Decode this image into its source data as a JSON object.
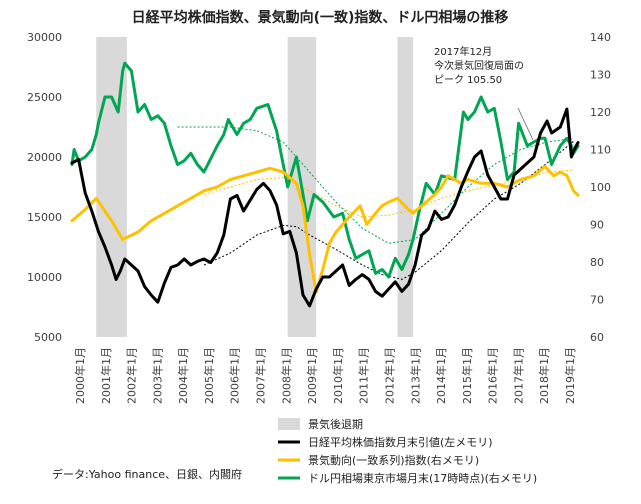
{
  "chart_data": {
    "type": "line",
    "title": "日経平均株価指数、景気動向(一致)指数、ドル円相場の推移",
    "source": "データ:Yahoo finance、日銀、内閣府",
    "annotation": [
      "2017年12月",
      "今次景気回復局面の",
      "ピーク 105.50"
    ],
    "x_labels": [
      "2000年1月",
      "2001年1月",
      "2002年1月",
      "2003年1月",
      "2004年1月",
      "2005年1月",
      "2006年1月",
      "2007年1月",
      "2008年1月",
      "2009年1月",
      "2010年1月",
      "2011年1月",
      "2012年1月",
      "2013年1月",
      "2014年1月",
      "2015年1月",
      "2016年1月",
      "2017年1月",
      "2018年1月",
      "2019年1月"
    ],
    "x_range": [
      2000.0,
      2019.17
    ],
    "y_left": {
      "ticks": [
        5000,
        10000,
        15000,
        20000,
        25000,
        30000
      ],
      "range": [
        5000,
        30000
      ]
    },
    "y_right": {
      "ticks": [
        60,
        70,
        80,
        90,
        100,
        110,
        120,
        130,
        140
      ],
      "range": [
        60,
        140
      ]
    },
    "recessions": [
      [
        2000.92,
        2002.08
      ],
      [
        2008.17,
        2009.25
      ],
      [
        2012.33,
        2012.92
      ]
    ],
    "legend": [
      {
        "key": "recession",
        "label": "景気後退期",
        "color": "#d9d9d9"
      },
      {
        "key": "nikkei",
        "label": "日経平均株価指数月末引値(左メモリ)",
        "color": "#000000"
      },
      {
        "key": "ci",
        "label": "景気動向(一致系列)指数(右メモリ)",
        "color": "#ffc000"
      },
      {
        "key": "usdjpy",
        "label": "ドル円相場東京市場月末(17時時点)(右メモリ)",
        "color": "#00a651"
      }
    ],
    "series": [
      {
        "name": "日経平均株価指数月末引値",
        "axis": "left",
        "color": "#000000",
        "points": [
          [
            2000.0,
            19500
          ],
          [
            2000.25,
            19800
          ],
          [
            2000.5,
            17000
          ],
          [
            2000.75,
            15500
          ],
          [
            2001.0,
            13800
          ],
          [
            2001.25,
            12500
          ],
          [
            2001.5,
            11000
          ],
          [
            2001.67,
            9800
          ],
          [
            2001.83,
            10500
          ],
          [
            2002.0,
            11500
          ],
          [
            2002.25,
            11000
          ],
          [
            2002.5,
            10500
          ],
          [
            2002.75,
            9200
          ],
          [
            2003.0,
            8500
          ],
          [
            2003.25,
            7900
          ],
          [
            2003.5,
            9500
          ],
          [
            2003.75,
            10800
          ],
          [
            2004.0,
            11000
          ],
          [
            2004.25,
            11500
          ],
          [
            2004.5,
            11000
          ],
          [
            2004.75,
            11300
          ],
          [
            2005.0,
            11500
          ],
          [
            2005.25,
            11200
          ],
          [
            2005.5,
            12000
          ],
          [
            2005.75,
            13500
          ],
          [
            2006.0,
            16500
          ],
          [
            2006.25,
            16800
          ],
          [
            2006.5,
            15500
          ],
          [
            2006.75,
            16400
          ],
          [
            2007.0,
            17300
          ],
          [
            2007.25,
            17800
          ],
          [
            2007.5,
            17200
          ],
          [
            2007.75,
            16000
          ],
          [
            2008.0,
            13600
          ],
          [
            2008.25,
            13800
          ],
          [
            2008.5,
            12000
          ],
          [
            2008.75,
            8500
          ],
          [
            2009.0,
            7600
          ],
          [
            2009.25,
            9000
          ],
          [
            2009.5,
            10000
          ],
          [
            2009.75,
            10000
          ],
          [
            2010.0,
            10500
          ],
          [
            2010.25,
            11000
          ],
          [
            2010.5,
            9300
          ],
          [
            2010.75,
            9800
          ],
          [
            2011.0,
            10200
          ],
          [
            2011.25,
            9800
          ],
          [
            2011.5,
            8800
          ],
          [
            2011.75,
            8400
          ],
          [
            2012.0,
            9000
          ],
          [
            2012.25,
            9600
          ],
          [
            2012.5,
            8800
          ],
          [
            2012.75,
            9400
          ],
          [
            2013.0,
            11000
          ],
          [
            2013.25,
            13500
          ],
          [
            2013.5,
            14000
          ],
          [
            2013.75,
            15500
          ],
          [
            2014.0,
            14800
          ],
          [
            2014.25,
            15000
          ],
          [
            2014.5,
            16000
          ],
          [
            2014.75,
            17500
          ],
          [
            2015.0,
            18800
          ],
          [
            2015.25,
            20000
          ],
          [
            2015.5,
            20500
          ],
          [
            2015.75,
            18500
          ],
          [
            2016.0,
            17500
          ],
          [
            2016.25,
            16500
          ],
          [
            2016.5,
            16500
          ],
          [
            2016.75,
            18500
          ],
          [
            2017.0,
            19000
          ],
          [
            2017.25,
            19500
          ],
          [
            2017.5,
            20000
          ],
          [
            2017.75,
            22000
          ],
          [
            2018.0,
            23000
          ],
          [
            2018.17,
            22000
          ],
          [
            2018.5,
            22500
          ],
          [
            2018.75,
            24000
          ],
          [
            2018.92,
            20000
          ],
          [
            2019.0,
            20500
          ],
          [
            2019.17,
            21200
          ]
        ]
      },
      {
        "name": "景気動向(一致系列)指数",
        "axis": "right",
        "color": "#ffc000",
        "points": [
          [
            2000.0,
            91
          ],
          [
            2000.5,
            94
          ],
          [
            2000.92,
            97
          ],
          [
            2001.5,
            91
          ],
          [
            2001.92,
            86
          ],
          [
            2002.5,
            88
          ],
          [
            2003.0,
            91
          ],
          [
            2003.5,
            93
          ],
          [
            2004.0,
            95
          ],
          [
            2004.5,
            97
          ],
          [
            2005.0,
            99
          ],
          [
            2005.5,
            100
          ],
          [
            2006.0,
            102
          ],
          [
            2006.5,
            103
          ],
          [
            2007.0,
            104
          ],
          [
            2007.5,
            105
          ],
          [
            2008.0,
            104
          ],
          [
            2008.17,
            103
          ],
          [
            2008.5,
            101
          ],
          [
            2008.75,
            95
          ],
          [
            2009.0,
            82
          ],
          [
            2009.25,
            72
          ],
          [
            2009.5,
            78
          ],
          [
            2009.75,
            85
          ],
          [
            2010.0,
            88
          ],
          [
            2010.5,
            92
          ],
          [
            2010.92,
            95
          ],
          [
            2011.17,
            90
          ],
          [
            2011.5,
            93
          ],
          [
            2011.75,
            95
          ],
          [
            2012.0,
            96
          ],
          [
            2012.33,
            97
          ],
          [
            2012.75,
            94
          ],
          [
            2012.92,
            93
          ],
          [
            2013.25,
            95
          ],
          [
            2013.75,
            98
          ],
          [
            2014.0,
            100
          ],
          [
            2014.25,
            103
          ],
          [
            2014.75,
            101
          ],
          [
            2015.0,
            102
          ],
          [
            2015.5,
            101
          ],
          [
            2016.0,
            101
          ],
          [
            2016.5,
            100
          ],
          [
            2017.0,
            102
          ],
          [
            2017.5,
            103
          ],
          [
            2017.92,
            105.5
          ],
          [
            2018.25,
            103
          ],
          [
            2018.5,
            104
          ],
          [
            2018.75,
            103
          ],
          [
            2019.0,
            99
          ],
          [
            2019.17,
            97.8
          ]
        ]
      },
      {
        "name": "ドル円相場東京市場月末(17時時点)",
        "axis": "right",
        "color": "#00a651",
        "points": [
          [
            2000.0,
            106
          ],
          [
            2000.08,
            110
          ],
          [
            2000.25,
            107
          ],
          [
            2000.5,
            108
          ],
          [
            2000.75,
            110
          ],
          [
            2000.92,
            114
          ],
          [
            2001.0,
            117
          ],
          [
            2001.25,
            124
          ],
          [
            2001.5,
            124
          ],
          [
            2001.75,
            120
          ],
          [
            2001.92,
            131
          ],
          [
            2002.0,
            133
          ],
          [
            2002.25,
            131
          ],
          [
            2002.5,
            120
          ],
          [
            2002.75,
            122
          ],
          [
            2003.0,
            118
          ],
          [
            2003.25,
            119
          ],
          [
            2003.5,
            117
          ],
          [
            2003.75,
            111
          ],
          [
            2004.0,
            106
          ],
          [
            2004.25,
            107
          ],
          [
            2004.5,
            109
          ],
          [
            2004.75,
            106
          ],
          [
            2005.0,
            104
          ],
          [
            2005.5,
            111
          ],
          [
            2005.75,
            114
          ],
          [
            2005.92,
            118
          ],
          [
            2006.0,
            117
          ],
          [
            2006.25,
            114
          ],
          [
            2006.5,
            117
          ],
          [
            2006.75,
            118
          ],
          [
            2007.0,
            121
          ],
          [
            2007.42,
            122
          ],
          [
            2007.75,
            115
          ],
          [
            2008.0,
            106
          ],
          [
            2008.17,
            100
          ],
          [
            2008.5,
            108
          ],
          [
            2008.75,
            98
          ],
          [
            2008.92,
            91
          ],
          [
            2009.17,
            98
          ],
          [
            2009.5,
            96
          ],
          [
            2009.92,
            92
          ],
          [
            2010.25,
            93
          ],
          [
            2010.5,
            86
          ],
          [
            2010.75,
            81
          ],
          [
            2011.0,
            82
          ],
          [
            2011.25,
            83
          ],
          [
            2011.5,
            77
          ],
          [
            2011.75,
            78
          ],
          [
            2012.0,
            76
          ],
          [
            2012.25,
            81
          ],
          [
            2012.5,
            78
          ],
          [
            2012.75,
            82
          ],
          [
            2012.92,
            86
          ],
          [
            2013.17,
            94
          ],
          [
            2013.42,
            101
          ],
          [
            2013.75,
            98
          ],
          [
            2014.0,
            103
          ],
          [
            2014.5,
            102
          ],
          [
            2014.83,
            120
          ],
          [
            2015.0,
            118
          ],
          [
            2015.25,
            120
          ],
          [
            2015.5,
            124
          ],
          [
            2015.75,
            120
          ],
          [
            2016.0,
            121
          ],
          [
            2016.25,
            112
          ],
          [
            2016.5,
            102
          ],
          [
            2016.75,
            104
          ],
          [
            2016.92,
            117
          ],
          [
            2017.25,
            111
          ],
          [
            2017.5,
            112
          ],
          [
            2017.75,
            113
          ],
          [
            2017.92,
            113
          ],
          [
            2018.17,
            106
          ],
          [
            2018.5,
            111
          ],
          [
            2018.75,
            113
          ],
          [
            2018.92,
            111
          ],
          [
            2019.0,
            109
          ],
          [
            2019.17,
            111
          ]
        ]
      }
    ],
    "trendlines": [
      {
        "base": "nikkei",
        "axis": "left",
        "color": "#000000",
        "points": [
          [
            2005.0,
            11000
          ],
          [
            2006.0,
            12000
          ],
          [
            2007.0,
            13500
          ],
          [
            2008.0,
            14300
          ],
          [
            2008.5,
            14200
          ],
          [
            2009.0,
            13500
          ],
          [
            2010.0,
            12300
          ],
          [
            2011.0,
            11000
          ],
          [
            2011.75,
            10200
          ],
          [
            2012.5,
            9800
          ],
          [
            2013.0,
            10400
          ],
          [
            2014.0,
            12200
          ],
          [
            2015.0,
            14500
          ],
          [
            2016.0,
            16500
          ],
          [
            2017.0,
            17800
          ],
          [
            2018.0,
            19500
          ],
          [
            2019.0,
            21300
          ]
        ]
      },
      {
        "base": "ci",
        "axis": "right",
        "color": "#ffc000",
        "points": [
          [
            2005.0,
            98
          ],
          [
            2006.0,
            100
          ],
          [
            2007.0,
            102
          ],
          [
            2008.0,
            102.5
          ],
          [
            2009.0,
            99
          ],
          [
            2010.0,
            95
          ],
          [
            2011.0,
            92
          ],
          [
            2012.0,
            92.5
          ],
          [
            2013.0,
            94
          ],
          [
            2014.0,
            97
          ],
          [
            2015.0,
            99
          ],
          [
            2016.0,
            100.5
          ],
          [
            2017.0,
            102
          ],
          [
            2018.0,
            104
          ],
          [
            2019.0,
            104.5
          ]
        ]
      },
      {
        "base": "usdjpy",
        "axis": "right",
        "color": "#00a651",
        "points": [
          [
            2004.0,
            116
          ],
          [
            2005.0,
            116
          ],
          [
            2006.0,
            116
          ],
          [
            2007.0,
            115
          ],
          [
            2008.0,
            112
          ],
          [
            2009.0,
            104
          ],
          [
            2010.0,
            96
          ],
          [
            2011.0,
            89
          ],
          [
            2012.0,
            85
          ],
          [
            2013.0,
            86
          ],
          [
            2014.0,
            93
          ],
          [
            2015.0,
            100
          ],
          [
            2016.0,
            106
          ],
          [
            2017.0,
            110
          ],
          [
            2018.0,
            112
          ],
          [
            2019.0,
            113
          ]
        ]
      }
    ]
  }
}
